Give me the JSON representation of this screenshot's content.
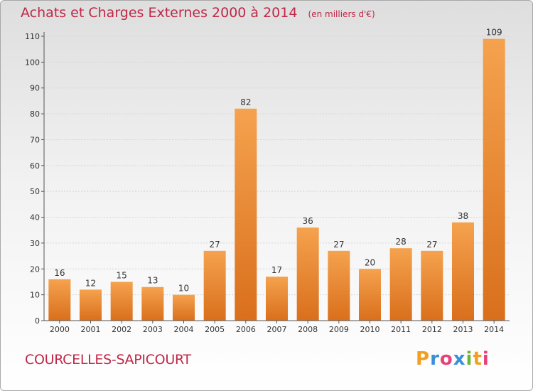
{
  "title": "Achats et Charges Externes 2000 à 2014",
  "subtitle": "(en milliers d'€)",
  "commune": "COURCELLES-SAPICOURT",
  "logo": {
    "text": "Proxiti",
    "colors": [
      "#f0a020",
      "#3a8fd8",
      "#e8407a",
      "#3a8fd8",
      "#6bb82e",
      "#f0a020",
      "#e8407a"
    ]
  },
  "colors": {
    "bar_top": "#f5a24e",
    "bar_bottom": "#d96f1c",
    "title": "#c02848"
  },
  "chart_data": {
    "type": "bar",
    "categories": [
      "2000",
      "2001",
      "2002",
      "2003",
      "2004",
      "2005",
      "2006",
      "2007",
      "2008",
      "2009",
      "2010",
      "2011",
      "2012",
      "2013",
      "2014"
    ],
    "values": [
      16,
      12,
      15,
      13,
      10,
      27,
      82,
      17,
      36,
      27,
      20,
      28,
      27,
      38,
      109
    ],
    "ylim": [
      0,
      110
    ],
    "yticks": [
      0,
      10,
      20,
      30,
      40,
      50,
      60,
      70,
      80,
      90,
      100,
      110
    ],
    "grid": true,
    "data_labels": true
  }
}
